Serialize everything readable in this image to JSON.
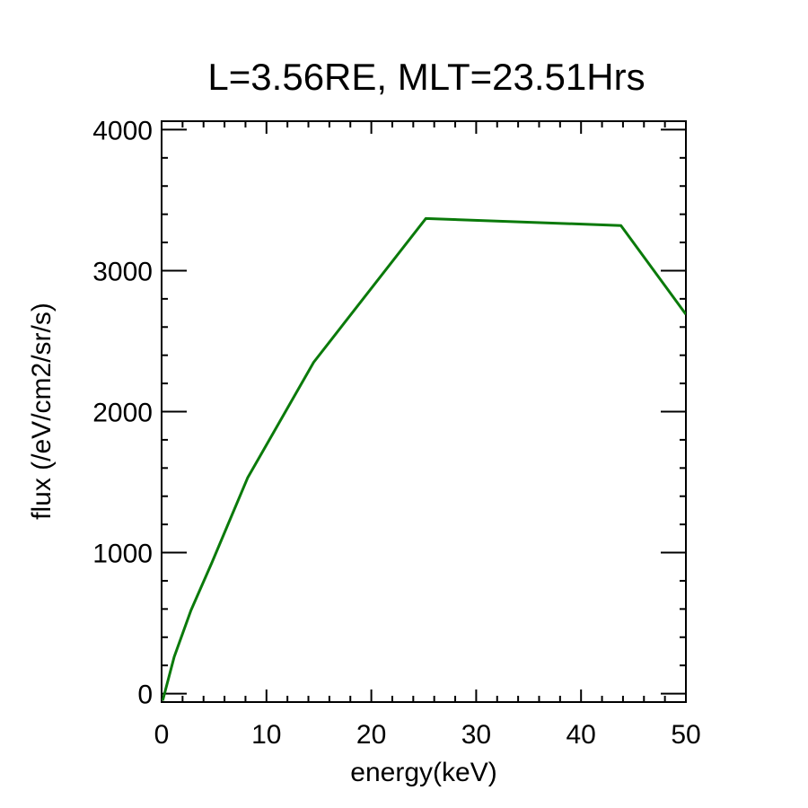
{
  "chart_data": {
    "type": "line",
    "title": "L=3.56RE, MLT=23.51Hrs",
    "xlabel": "energy(keV)",
    "ylabel": "flux (/eV/cm2/sr/s)",
    "xlim": [
      0,
      50
    ],
    "ylim": [
      -60,
      4060
    ],
    "x_ticks": [
      0,
      10,
      20,
      30,
      40,
      50
    ],
    "x_tick_labels": [
      "0",
      "10",
      "20",
      "30",
      "40",
      "50"
    ],
    "y_ticks": [
      0,
      1000,
      2000,
      3000,
      4000
    ],
    "y_tick_labels": [
      "0",
      "1000",
      "2000",
      "3000",
      "4000"
    ],
    "x_minor_step": 2,
    "y_minor_step": 200,
    "grid": false,
    "series": [
      {
        "color": "#0a7a0a",
        "x": [
          0.1,
          1.2,
          2.8,
          4.8,
          8.2,
          14.5,
          25.2,
          43.8,
          50.0
        ],
        "y": [
          -50,
          260,
          590,
          930,
          1530,
          2350,
          3370,
          3320,
          2690
        ]
      }
    ]
  }
}
